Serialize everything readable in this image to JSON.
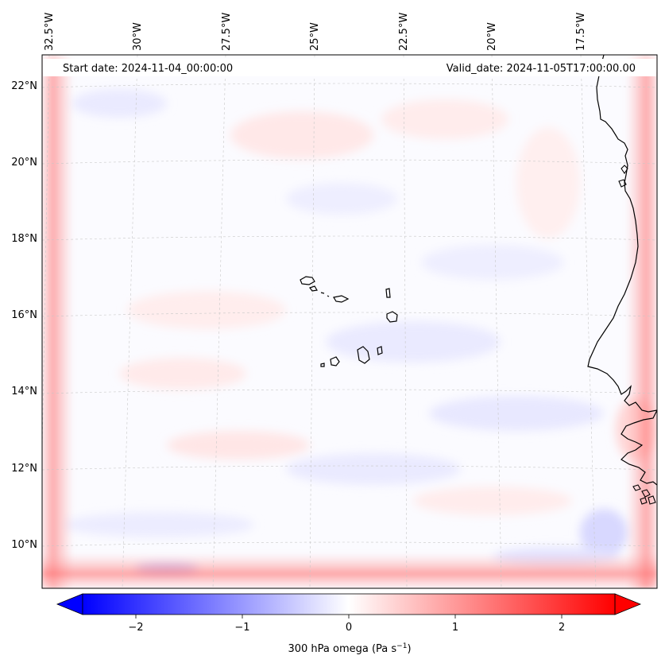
{
  "map": {
    "start_date_label": "Start date: 2024-11-04_00:00:00",
    "valid_date_label": "Valid_date: 2024-11-05T17:00:00.00",
    "longitude_labels": [
      "32.5°W",
      "30°W",
      "27.5°W",
      "25°W",
      "22.5°W",
      "20°W",
      "17.5°W"
    ],
    "latitude_labels": [
      "22°N",
      "20°N",
      "18°N",
      "16°N",
      "14°N",
      "12°N",
      "10°N"
    ],
    "field_colors": {
      "positive": "#ff0000",
      "negative": "#0000ff",
      "neutral": "#ffffff",
      "coastline": "#000000",
      "gridline": "#bdbdbd"
    }
  },
  "colorbar": {
    "label_main": "300 hPa omega (Pa s",
    "label_sup": "−1",
    "label_close": ")",
    "tick_labels": [
      "−2",
      "−1",
      "0",
      "1",
      "2"
    ],
    "tick_values": [
      -2,
      -1,
      0,
      1,
      2
    ],
    "range": [
      -2.5,
      2.5
    ],
    "colors": {
      "min": "#0000ff",
      "mid": "#ffffff",
      "max": "#ff0000"
    }
  }
}
